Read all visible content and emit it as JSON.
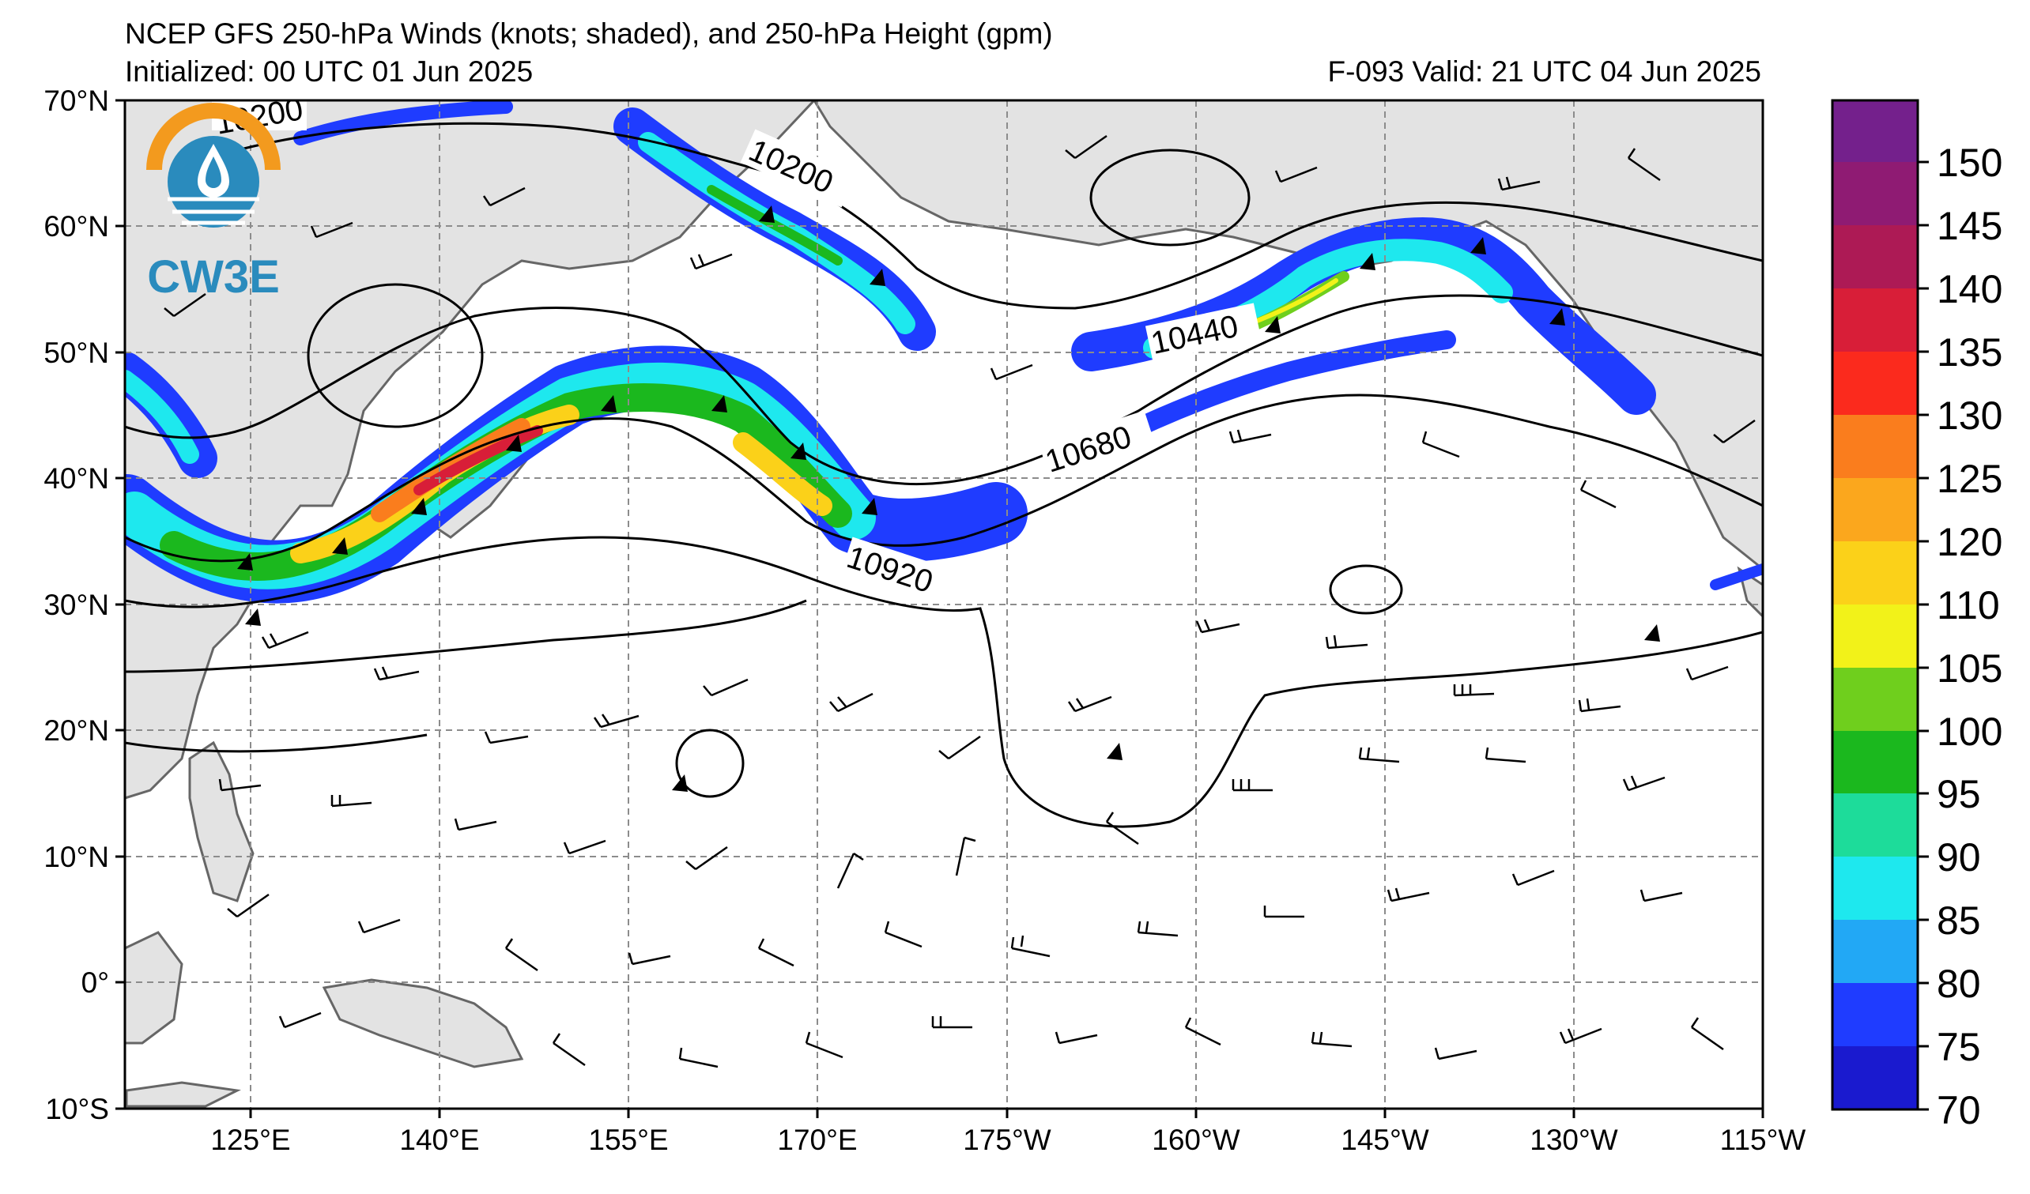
{
  "header": {
    "title": "NCEP GFS 250-hPa Winds (knots; shaded), and 250-hPa Height (gpm)",
    "initialized": "Initialized: 00 UTC 01 Jun 2025",
    "valid": "F-093  Valid: 21 UTC 04 Jun 2025"
  },
  "logo": {
    "text": "CW3E",
    "colors": {
      "orange": "#f39a1e",
      "blue": "#2a8bbd"
    }
  },
  "map": {
    "projection": "equirectangular",
    "lon_range": [
      115,
      245
    ],
    "lat_range": [
      -10,
      70
    ],
    "gridlines": "dashed",
    "land_color": "#e3e3e3",
    "coast_color": "#666666",
    "lat_ticks": [
      "70°N",
      "60°N",
      "50°N",
      "40°N",
      "30°N",
      "20°N",
      "10°N",
      "0°",
      "10°S"
    ],
    "lon_ticks": [
      "125°E",
      "140°E",
      "155°E",
      "170°E",
      "175°W",
      "160°W",
      "145°W",
      "130°W",
      "115°W"
    ]
  },
  "contour_labels": [
    "10200",
    "10200",
    "10440",
    "10680",
    "10920"
  ],
  "colorbar": {
    "labels": [
      "70",
      "75",
      "80",
      "85",
      "90",
      "95",
      "100",
      "105",
      "110",
      "120",
      "125",
      "130",
      "135",
      "140",
      "145",
      "150"
    ],
    "colors": [
      "#1a1acf",
      "#1f3cff",
      "#22a8f5",
      "#1ee8ee",
      "#1ddc9a",
      "#1bb81e",
      "#6fcf1d",
      "#f2f219",
      "#fbd119",
      "#fba71d",
      "#fa7d1d",
      "#fb2a1d",
      "#d81e38",
      "#ad1a55",
      "#8f1b73",
      "#74208c"
    ]
  }
}
